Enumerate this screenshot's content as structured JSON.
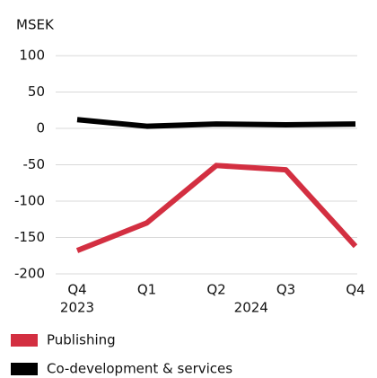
{
  "chart_data": {
    "type": "line",
    "y_label": "MSEK",
    "categories": [
      "Q4",
      "Q1",
      "Q2",
      "Q3",
      "Q4"
    ],
    "x_groups": [
      "2023",
      "2024"
    ],
    "series": [
      {
        "name": "Publishing",
        "color": "#d32f41",
        "values": [
          -168,
          -130,
          -51,
          -57,
          -162
        ]
      },
      {
        "name": "Co-development & services",
        "color": "#000000",
        "values": [
          12,
          3,
          6,
          5,
          6
        ]
      }
    ],
    "ylim": [
      -200,
      100
    ],
    "yticks": [
      -200,
      -150,
      -100,
      -50,
      0,
      50,
      100
    ],
    "grid": true,
    "legend": "bottom"
  }
}
